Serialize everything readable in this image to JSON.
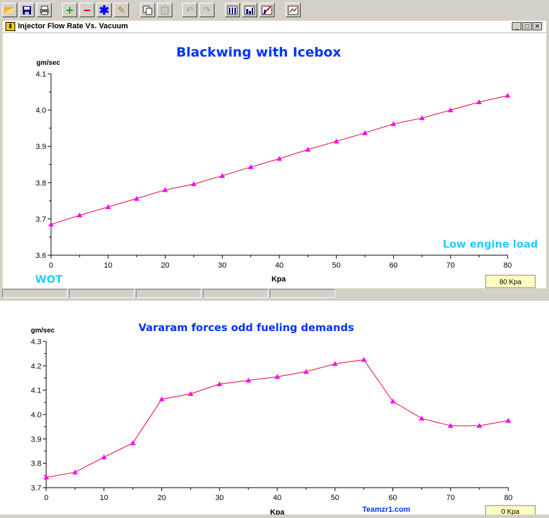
{
  "window": {
    "title": "Injector Flow Rate Vs. Vacuum"
  },
  "toolbar": {
    "icons": [
      "open-icon",
      "save-icon",
      "print-icon",
      "add-icon",
      "remove-icon",
      "asterisk-icon",
      "edit-icon",
      "copy-icon",
      "paste-icon",
      "undo-icon",
      "redo-icon",
      "bar-chart-icon",
      "histogram-icon",
      "chart-edit-icon",
      "chart-settings-icon"
    ]
  },
  "colors": {
    "title_blue": "#0033ff",
    "annot_cyan": "#22ccff",
    "line_red": "#e8002a",
    "marker_magenta": "#ff00ff",
    "readout_bg": "#ffffc0"
  },
  "chart_data": [
    {
      "type": "line",
      "title": "Blackwing with Icebox",
      "xlabel": "Kpa",
      "ylabel": "gm/sec",
      "xlim": [
        0,
        80
      ],
      "ylim": [
        3.6,
        4.1
      ],
      "x_ticks": [
        0,
        10,
        20,
        30,
        40,
        50,
        60,
        70,
        80
      ],
      "y_ticks": [
        3.6,
        3.7,
        3.8,
        3.9,
        4.0,
        4.1
      ],
      "x": [
        0,
        5,
        10,
        15,
        20,
        25,
        30,
        35,
        40,
        45,
        50,
        55,
        60,
        65,
        70,
        75,
        80
      ],
      "y": [
        3.685,
        3.71,
        3.733,
        3.756,
        3.78,
        3.796,
        3.819,
        3.843,
        3.866,
        3.891,
        3.914,
        3.937,
        3.962,
        3.978,
        4.0,
        4.022,
        4.04
      ],
      "annotations": [
        "Low engine load",
        "WOT"
      ],
      "readout": "80 Kpa",
      "grid": false
    },
    {
      "type": "line",
      "title": "Vararam forces odd fueling demands",
      "xlabel": "Kpa",
      "ylabel": "gm/sec",
      "xlim": [
        0,
        80
      ],
      "ylim": [
        3.7,
        4.3
      ],
      "x_ticks": [
        0,
        10,
        20,
        30,
        40,
        50,
        60,
        70,
        80
      ],
      "y_ticks": [
        3.7,
        3.8,
        3.9,
        4.0,
        4.1,
        4.2,
        4.3
      ],
      "x": [
        0,
        5,
        10,
        15,
        20,
        25,
        30,
        35,
        40,
        45,
        50,
        55,
        60,
        65,
        70,
        75,
        80
      ],
      "y": [
        3.742,
        3.763,
        3.825,
        3.883,
        4.063,
        4.085,
        4.125,
        4.14,
        4.155,
        4.176,
        4.208,
        4.225,
        4.054,
        3.984,
        3.954,
        3.954,
        3.975
      ],
      "annotations": [
        "Teamzr1.com"
      ],
      "readout": "0 Kpa",
      "grid": false
    }
  ]
}
